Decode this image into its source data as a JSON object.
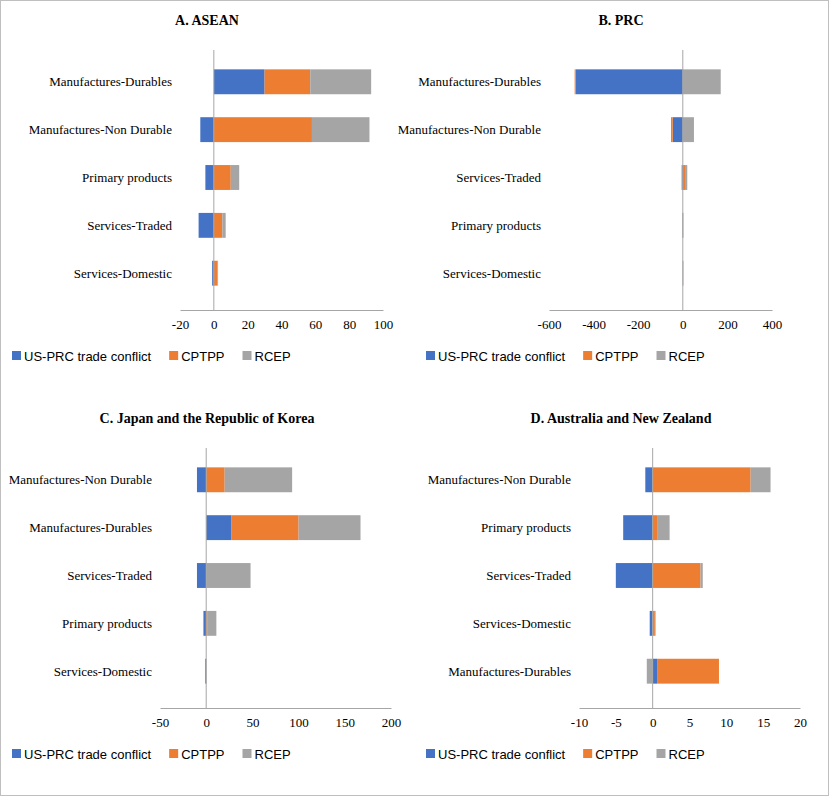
{
  "chart_data": [
    {
      "type": "bar",
      "title": "A. ASEAN",
      "orientation": "horizontal",
      "stacked": true,
      "legend": "bottom",
      "categories": [
        "Manufactures-Durables",
        "Manufactures-Non Durable",
        "Primary products",
        "Services-Traded",
        "Services-Domestic"
      ],
      "series": [
        {
          "name": "US-PRC trade conflict",
          "color": "#4472c4",
          "values": [
            30,
            -8,
            -5,
            -9,
            -1
          ]
        },
        {
          "name": "CPTPP",
          "color": "#ed7d31",
          "values": [
            27,
            58,
            10,
            5,
            2
          ]
        },
        {
          "name": "RCEP",
          "color": "#a5a5a5",
          "values": [
            36,
            34,
            5,
            2,
            0.5
          ]
        }
      ],
      "xlim": [
        -20,
        100
      ],
      "xticks": [
        -20,
        0,
        20,
        40,
        60,
        80,
        100
      ]
    },
    {
      "type": "bar",
      "title": "B. PRC",
      "orientation": "horizontal",
      "stacked": true,
      "legend": "bottom",
      "categories": [
        "Manufactures-Durables",
        "Manufactures-Non Durable",
        "Services-Traded",
        "Primary products",
        "Services-Domestic"
      ],
      "series": [
        {
          "name": "US-PRC trade conflict",
          "color": "#4472c4",
          "values": [
            -480,
            -45,
            -5,
            -2,
            -1
          ]
        },
        {
          "name": "CPTPP",
          "color": "#ed7d31",
          "values": [
            -5,
            -8,
            10,
            1,
            1
          ]
        },
        {
          "name": "RCEP",
          "color": "#a5a5a5",
          "values": [
            170,
            50,
            10,
            2,
            2
          ]
        }
      ],
      "xlim": [
        -600,
        400
      ],
      "xticks": [
        -600,
        -400,
        -200,
        0,
        200,
        400
      ]
    },
    {
      "type": "bar",
      "title": "C. Japan and the Republic of Korea",
      "orientation": "horizontal",
      "stacked": true,
      "legend": "bottom",
      "categories": [
        "Manufactures-Non Durable",
        "Manufactures-Durables",
        "Services-Traded",
        "Primary products",
        "Services-Domestic"
      ],
      "series": [
        {
          "name": "US-PRC trade conflict",
          "color": "#4472c4",
          "values": [
            -10,
            27,
            -10,
            -3,
            -1
          ]
        },
        {
          "name": "CPTPP",
          "color": "#ed7d31",
          "values": [
            20,
            73,
            0,
            1,
            0
          ]
        },
        {
          "name": "RCEP",
          "color": "#a5a5a5",
          "values": [
            73,
            67,
            48,
            10,
            0.5
          ]
        }
      ],
      "xlim": [
        -50,
        200
      ],
      "xticks": [
        -50,
        0,
        50,
        100,
        150,
        200
      ]
    },
    {
      "type": "bar",
      "title": "D. Australia and New Zealand",
      "orientation": "horizontal",
      "stacked": true,
      "legend": "bottom",
      "categories": [
        "Manufactures-Non Durable",
        "Primary products",
        "Services-Traded",
        "Services-Domestic",
        "Manufactures-Durables"
      ],
      "series": [
        {
          "name": "US-PRC trade conflict",
          "color": "#4472c4",
          "values": [
            -1,
            -4,
            -5,
            -0.4,
            0.6
          ]
        },
        {
          "name": "CPTPP",
          "color": "#ed7d31",
          "values": [
            13.3,
            0.6,
            6.5,
            0.3,
            8.4
          ]
        },
        {
          "name": "RCEP",
          "color": "#a5a5a5",
          "values": [
            2.7,
            1.7,
            0.3,
            0.1,
            -0.8
          ]
        }
      ],
      "xlim": [
        -10,
        20
      ],
      "xticks": [
        -10,
        -5,
        0,
        5,
        10,
        15,
        20
      ]
    }
  ]
}
